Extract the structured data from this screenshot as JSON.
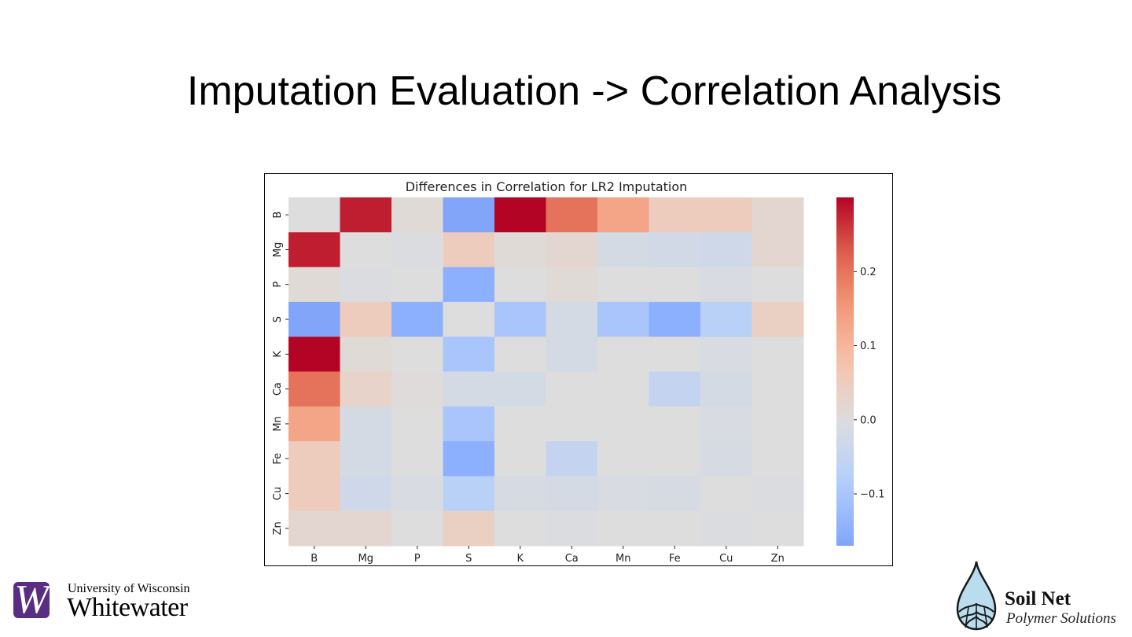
{
  "slide": {
    "title": "Imputation Evaluation -> Correlation Analysis"
  },
  "logos": {
    "left": {
      "mark_letter": "W",
      "line1": "University of Wisconsin",
      "line2": "Whitewater",
      "brand_color": "#5a2d82"
    },
    "right": {
      "line1": "Soil Net",
      "line2": "Polymer Solutions",
      "icon": "water-drop-roots-icon"
    }
  },
  "chart_data": {
    "type": "heatmap",
    "title": "Differences in Correlation for LR2 Imputation",
    "xlabel": "",
    "ylabel": "",
    "x_categories": [
      "B",
      "Mg",
      "P",
      "S",
      "K",
      "Ca",
      "Mn",
      "Fe",
      "Cu",
      "Zn"
    ],
    "y_categories": [
      "B",
      "Mg",
      "P",
      "S",
      "K",
      "Ca",
      "Mn",
      "Fe",
      "Cu",
      "Zn"
    ],
    "values": [
      [
        0.0,
        0.28,
        0.01,
        -0.17,
        0.3,
        0.2,
        0.13,
        0.05,
        0.05,
        0.02
      ],
      [
        0.28,
        0.0,
        -0.005,
        0.05,
        0.01,
        0.02,
        -0.02,
        -0.025,
        -0.03,
        0.02
      ],
      [
        0.01,
        -0.005,
        0.0,
        -0.15,
        0.0,
        0.01,
        0.0,
        0.0,
        -0.01,
        0.0
      ],
      [
        -0.17,
        0.05,
        -0.15,
        0.0,
        -0.1,
        -0.02,
        -0.1,
        -0.15,
        -0.07,
        0.04
      ],
      [
        0.3,
        0.01,
        0.0,
        -0.1,
        0.0,
        -0.02,
        0.0,
        0.0,
        -0.01,
        0.0
      ],
      [
        0.2,
        0.03,
        0.005,
        -0.02,
        -0.02,
        0.0,
        0.0,
        -0.05,
        -0.02,
        0.0
      ],
      [
        0.13,
        -0.02,
        0.0,
        -0.1,
        0.0,
        0.0,
        0.0,
        0.0,
        -0.01,
        0.0
      ],
      [
        0.05,
        -0.02,
        0.0,
        -0.15,
        0.0,
        -0.05,
        0.0,
        0.0,
        -0.015,
        0.0
      ],
      [
        0.05,
        -0.03,
        -0.01,
        -0.07,
        -0.015,
        -0.02,
        -0.01,
        -0.015,
        0.0,
        -0.005
      ],
      [
        0.02,
        0.02,
        0.0,
        0.04,
        0.0,
        -0.005,
        0.0,
        0.0,
        -0.005,
        0.0
      ]
    ],
    "colormap": "coolwarm",
    "vmin": -0.17,
    "vmax": 0.3,
    "center": 0.0,
    "colorbar": {
      "ticks": [
        0.2,
        0.1,
        0.0,
        -0.1
      ],
      "tick_labels": [
        "0.2",
        "0.1",
        "0.0",
        "−0.1"
      ],
      "placement": "right"
    },
    "grid": false
  }
}
